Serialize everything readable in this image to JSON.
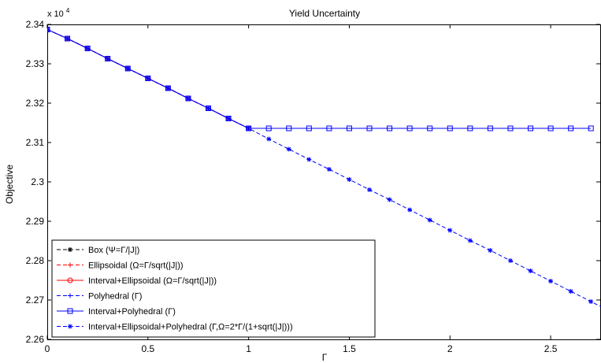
{
  "chart_data": {
    "type": "line",
    "title": "Yield Uncertainty",
    "xlabel": "Γ",
    "ylabel": "Objective",
    "y_multiplier_label": "x 10",
    "y_multiplier_exp": "4",
    "xlim": [
      0,
      2.75
    ],
    "ylim": [
      2.26,
      2.34
    ],
    "x_ticks": [
      0,
      0.5,
      1,
      1.5,
      2,
      2.5
    ],
    "x_tick_labels": [
      "0",
      "0.5",
      "1",
      "1.5",
      "2",
      "2.5"
    ],
    "y_ticks": [
      2.26,
      2.27,
      2.28,
      2.29,
      2.3,
      2.31,
      2.32,
      2.33,
      2.34
    ],
    "y_tick_labels": [
      "2.26",
      "2.27",
      "2.28",
      "2.29",
      "2.3",
      "2.31",
      "2.32",
      "2.33",
      "2.34"
    ],
    "grid": false,
    "legend_position": "bottom-left",
    "series": [
      {
        "name": "Box (Ψ=Γ/|J|)",
        "color": "#000000",
        "line_style": "dashed",
        "marker": "star",
        "x": [
          0,
          0.1,
          0.2,
          0.3,
          0.4,
          0.5,
          0.6,
          0.7,
          0.8,
          0.9,
          1.0
        ],
        "y": [
          2.3387,
          2.3364,
          2.3339,
          2.3313,
          2.3288,
          2.3263,
          2.3238,
          2.3212,
          2.3187,
          2.3161,
          2.3136
        ]
      },
      {
        "name": "Ellipsoidal (Ω=Γ/sqrt(|J|))",
        "color": "#ff0000",
        "line_style": "dashed",
        "marker": "plus",
        "x": [
          0,
          0.1,
          0.2,
          0.3,
          0.4,
          0.5,
          0.6,
          0.7,
          0.8,
          0.9,
          1.0
        ],
        "y": [
          2.3387,
          2.3364,
          2.3339,
          2.3313,
          2.3288,
          2.3263,
          2.3238,
          2.3212,
          2.3187,
          2.3161,
          2.3136
        ]
      },
      {
        "name": "Interval+Ellipsoidal (Ω=Γ/sqrt(|J|))",
        "color": "#ff0000",
        "line_style": "solid",
        "marker": "circle",
        "x": [
          0,
          0.1,
          0.2,
          0.3,
          0.4,
          0.5,
          0.6,
          0.7,
          0.8,
          0.9,
          1.0
        ],
        "y": [
          2.3387,
          2.3364,
          2.3339,
          2.3313,
          2.3288,
          2.3263,
          2.3238,
          2.3212,
          2.3187,
          2.3161,
          2.3136
        ]
      },
      {
        "name": "Polyhedral (Γ)",
        "color": "#0000ff",
        "line_style": "dashed",
        "marker": "plus",
        "x": [
          0,
          0.1,
          0.2,
          0.3,
          0.4,
          0.5,
          0.6,
          0.7,
          0.8,
          0.9,
          1.0
        ],
        "y": [
          2.3387,
          2.3364,
          2.3339,
          2.3313,
          2.3288,
          2.3263,
          2.3238,
          2.3212,
          2.3187,
          2.3161,
          2.3136
        ]
      },
      {
        "name": "Interval+Polyhedral (Γ)",
        "color": "#0000ff",
        "line_style": "solid",
        "marker": "square",
        "x": [
          0,
          0.1,
          0.2,
          0.3,
          0.4,
          0.5,
          0.6,
          0.7,
          0.8,
          0.9,
          1.0,
          1.1,
          1.2,
          1.3,
          1.4,
          1.5,
          1.6,
          1.7,
          1.8,
          1.9,
          2.0,
          2.1,
          2.2,
          2.3,
          2.4,
          2.5,
          2.6,
          2.7
        ],
        "y": [
          2.3387,
          2.3364,
          2.3339,
          2.3313,
          2.3288,
          2.3263,
          2.3238,
          2.3212,
          2.3187,
          2.3161,
          2.3136,
          2.3136,
          2.3136,
          2.3136,
          2.3136,
          2.3136,
          2.3136,
          2.3136,
          2.3136,
          2.3136,
          2.3136,
          2.3136,
          2.3136,
          2.3136,
          2.3136,
          2.3136,
          2.3136,
          2.3136
        ]
      },
      {
        "name": "Interval+Ellipsoidal+Polyhedral (Γ,Ω=2*Γ/(1+sqrt(|J|)))",
        "color": "#0000ff",
        "line_style": "dashed",
        "marker": "star",
        "x": [
          0,
          0.1,
          0.2,
          0.3,
          0.4,
          0.5,
          0.6,
          0.7,
          0.8,
          0.9,
          1.0,
          1.1,
          1.2,
          1.3,
          1.4,
          1.5,
          1.6,
          1.7,
          1.8,
          1.9,
          2.0,
          2.1,
          2.2,
          2.3,
          2.4,
          2.5,
          2.6,
          2.7,
          2.75
        ],
        "y": [
          2.3387,
          2.3364,
          2.3339,
          2.3313,
          2.3288,
          2.3263,
          2.3238,
          2.3212,
          2.3187,
          2.3161,
          2.3136,
          2.3109,
          2.3083,
          2.3057,
          2.3032,
          2.3006,
          2.298,
          2.2955,
          2.2929,
          2.2903,
          2.2877,
          2.2851,
          2.2826,
          2.28,
          2.2774,
          2.2748,
          2.2722,
          2.2696,
          2.2683
        ]
      }
    ]
  }
}
